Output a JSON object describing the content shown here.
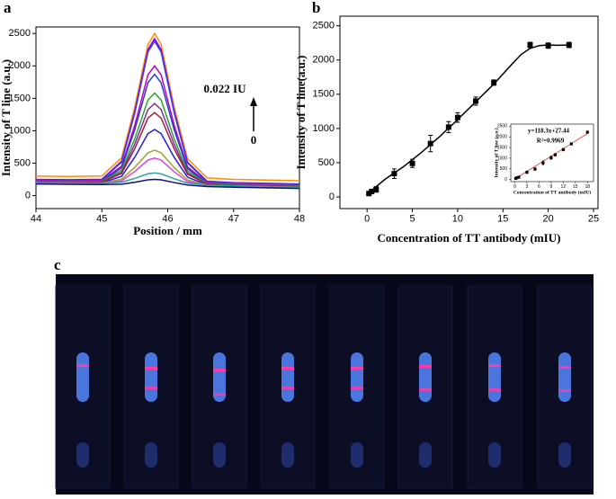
{
  "panel_labels": [
    "a",
    "b",
    "c"
  ],
  "chart_data": [
    {
      "type": "line",
      "xlabel": "Position / mm",
      "ylabel": "Intensity of T line (a.u.)",
      "xlim": [
        44,
        48
      ],
      "ylim": [
        -200,
        2600
      ],
      "xticks": [
        44,
        45,
        46,
        47,
        48
      ],
      "yticks": [
        0,
        500,
        1000,
        1500,
        2000,
        2500
      ],
      "annotations": [
        "0.022 IU",
        "0"
      ],
      "x": [
        44,
        44.5,
        45,
        45.3,
        45.5,
        45.7,
        45.8,
        45.9,
        46.1,
        46.3,
        46.6,
        47,
        47.5,
        48
      ],
      "series": [
        {
          "color": "#ff8c00",
          "values": [
            300,
            295,
            303,
            584,
            1364,
            2329,
            2500,
            2329,
            1359,
            571,
            273,
            250,
            240,
            230
          ]
        },
        {
          "color": "#8b00ff",
          "values": [
            250,
            245,
            253,
            530,
            1299,
            2251,
            2420,
            2251,
            1294,
            517,
            223,
            200,
            190,
            180
          ]
        },
        {
          "color": "#3a3ae8",
          "values": [
            240,
            235,
            243,
            516,
            1274,
            2214,
            2380,
            2214,
            1269,
            503,
            213,
            190,
            180,
            170
          ]
        },
        {
          "color": "#c000c0",
          "values": [
            230,
            225,
            231,
            456,
            1084,
            1862,
            2000,
            1862,
            1079,
            443,
            201,
            180,
            170,
            160
          ]
        },
        {
          "color": "#2040c0",
          "values": [
            220,
            215,
            220,
            430,
            1016,
            1741,
            1870,
            1741,
            1011,
            417,
            190,
            170,
            160,
            150
          ]
        },
        {
          "color": "#30a030",
          "values": [
            220,
            215,
            218,
            391,
            875,
            1474,
            1580,
            1474,
            869,
            378,
            188,
            170,
            160,
            150
          ]
        },
        {
          "color": "#8030a0",
          "values": [
            210,
            205,
            207,
            360,
            792,
            1325,
            1420,
            1325,
            786,
            347,
            177,
            160,
            150,
            140
          ]
        },
        {
          "color": "#a02040",
          "values": [
            210,
            205,
            206,
            341,
            723,
            1196,
            1280,
            1196,
            718,
            329,
            177,
            160,
            150,
            140
          ]
        },
        {
          "color": "#2020d0",
          "values": [
            200,
            195,
            195,
            298,
            592,
            955,
            1020,
            955,
            587,
            285,
            165,
            150,
            140,
            130
          ]
        },
        {
          "color": "#a0a030",
          "values": [
            200,
            195,
            193,
            255,
            436,
            660,
            700,
            660,
            431,
            242,
            163,
            150,
            140,
            130
          ]
        },
        {
          "color": "#e040e0",
          "values": [
            190,
            185,
            182,
            230,
            372,
            548,
            580,
            548,
            367,
            217,
            152,
            140,
            130,
            120
          ]
        },
        {
          "color": "#30a0a0",
          "values": [
            200,
            195,
            190,
            207,
            265,
            337,
            350,
            337,
            260,
            194,
            160,
            150,
            140,
            130
          ]
        },
        {
          "color": "#101080",
          "values": [
            180,
            175,
            170,
            176,
            206,
            243,
            250,
            243,
            201,
            164,
            140,
            130,
            120,
            110
          ]
        }
      ]
    },
    {
      "type": "scatter",
      "xlabel": "Concentration of TT antibody (mIU)",
      "ylabel": "Intensity of T line(a.u.)",
      "xlim": [
        -3,
        25.5
      ],
      "ylim": [
        -170,
        2640
      ],
      "xticks": [
        0,
        5,
        10,
        15,
        20,
        25
      ],
      "yticks": [
        0,
        500,
        1000,
        1500,
        2000,
        2500
      ],
      "series": [
        {
          "style": "line",
          "color": "#000000",
          "x": [
            0,
            2,
            4,
            6,
            8,
            10,
            12,
            14,
            16,
            17,
            18,
            19,
            20,
            21,
            22.5
          ],
          "values": [
            40,
            260,
            440,
            650,
            880,
            1130,
            1390,
            1650,
            1940,
            2080,
            2170,
            2210,
            2220,
            2215,
            2220
          ]
        },
        {
          "style": "points",
          "color": "#000000",
          "x": [
            0.2,
            0.5,
            1,
            3,
            5,
            7,
            9,
            10,
            12,
            14,
            18,
            20,
            22.3
          ],
          "values": [
            50,
            80,
            110,
            340,
            490,
            780,
            1020,
            1160,
            1400,
            1670,
            2220,
            2210,
            2220
          ],
          "errors": [
            20,
            30,
            40,
            70,
            60,
            120,
            80,
            70,
            60,
            40,
            40,
            40,
            40
          ]
        }
      ]
    },
    {
      "type": "scatter",
      "xlabel": "Concentration of TT antibody (mIU)",
      "ylabel": "Intensity of T line (a.u.)",
      "xlim": [
        -1,
        19.5
      ],
      "ylim": [
        -100,
        2600
      ],
      "xticks": [
        0,
        3,
        6,
        9,
        12,
        15,
        18
      ],
      "yticks": [
        0,
        500,
        1000,
        1500,
        2000,
        2500
      ],
      "annotations": [
        "y=118.3x+27.44",
        "R²=0.9969"
      ],
      "series": [
        {
          "style": "line",
          "color": "#e03030",
          "x": [
            0,
            18
          ],
          "values": [
            27.44,
            2156.84
          ]
        },
        {
          "style": "points",
          "color": "#000000",
          "x": [
            0.2,
            0.5,
            1,
            3,
            5,
            7,
            9,
            10,
            12,
            14,
            18
          ],
          "values": [
            50,
            80,
            110,
            340,
            490,
            780,
            1020,
            1160,
            1400,
            1670,
            2220
          ],
          "errors": [
            20,
            20,
            30,
            60,
            60,
            100,
            80,
            60,
            60,
            50,
            40
          ]
        }
      ]
    }
  ]
}
